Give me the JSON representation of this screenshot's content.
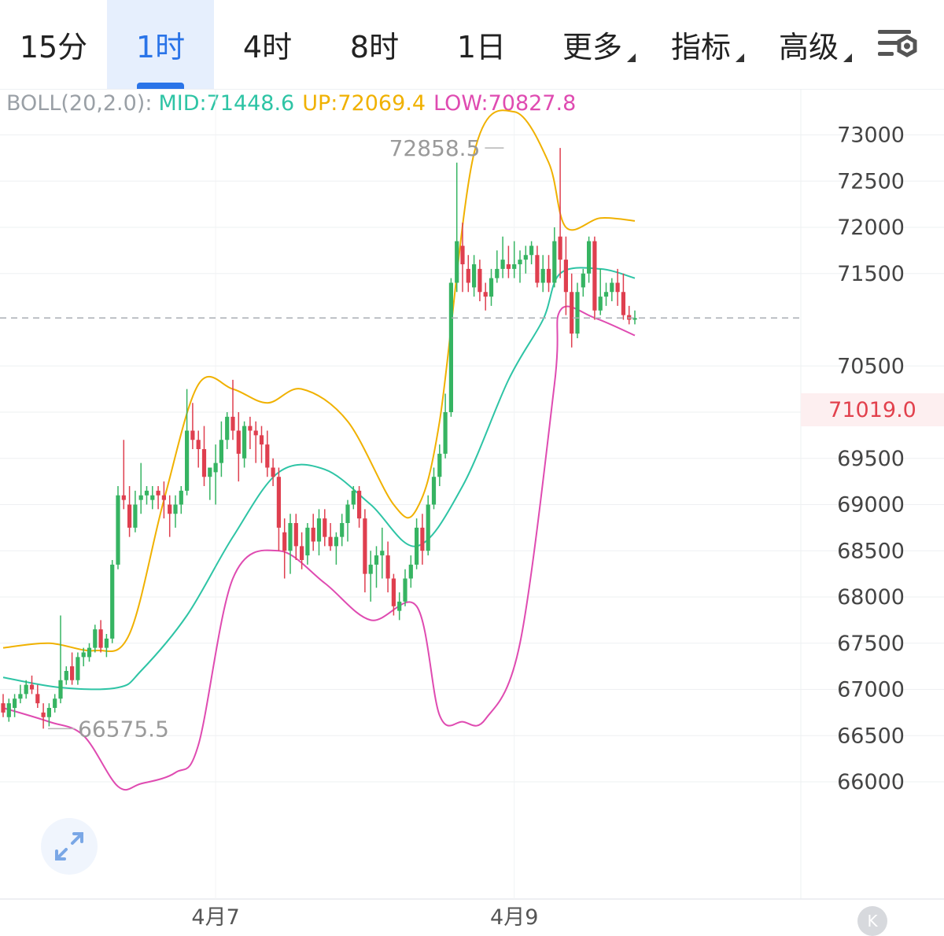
{
  "tabs": [
    {
      "label": "15分",
      "active": false,
      "dropdown": false
    },
    {
      "label": "1时",
      "active": true,
      "dropdown": false
    },
    {
      "label": "4时",
      "active": false,
      "dropdown": false
    },
    {
      "label": "8时",
      "active": false,
      "dropdown": false
    },
    {
      "label": "1日",
      "active": false,
      "dropdown": false
    },
    {
      "label": "更多",
      "active": false,
      "dropdown": true
    },
    {
      "label": "指标",
      "active": false,
      "dropdown": true
    },
    {
      "label": "高级",
      "active": false,
      "dropdown": true
    }
  ],
  "settings_icon": "chart-settings-icon",
  "indicator": {
    "label": "BOLL(20,2.0):",
    "mid": "MID:71448.6",
    "up": "UP:72069.4",
    "low": "LOW:70827.8"
  },
  "current_price": "71019.0",
  "expand_icon": "expand-arrows-icon",
  "home_icon": "scroll-to-latest-icon",
  "home_glyph": "K",
  "colors": {
    "up_candle": "#36b462",
    "down_candle": "#df3f4f",
    "boll_mid": "#2ec4a5",
    "boll_up": "#f0b100",
    "boll_low": "#df4bb1",
    "active_tab": "#2a74e8"
  },
  "chart_data": {
    "type": "candlestick",
    "interval": "1时",
    "y_ticks": [
      73000,
      72500,
      72000,
      71500,
      70500,
      70000,
      69500,
      69000,
      68500,
      68000,
      67500,
      67000,
      66500,
      66000
    ],
    "ylim": [
      65850,
      73700
    ],
    "x_labels": [
      {
        "label": "4月7",
        "index": 37
      },
      {
        "label": "4月9",
        "index": 89
      }
    ],
    "annotations": [
      {
        "text": "72858.5",
        "index": 88,
        "value": 72858.5,
        "kind": "high"
      },
      {
        "text": "66575.5",
        "index": 7,
        "value": 66575.5,
        "kind": "low"
      }
    ],
    "last_price": 71019.0,
    "ohlc": [
      [
        66850,
        66950,
        66700,
        66750
      ],
      [
        66700,
        66900,
        66650,
        66850
      ],
      [
        66800,
        66950,
        66700,
        66900
      ],
      [
        66900,
        67050,
        66850,
        66950
      ],
      [
        66950,
        67100,
        66900,
        67050
      ],
      [
        67050,
        67150,
        66950,
        67000
      ],
      [
        66950,
        67050,
        66800,
        66850
      ],
      [
        66750,
        66850,
        66575.5,
        66700
      ],
      [
        66700,
        66850,
        66600,
        66800
      ],
      [
        66800,
        66950,
        66750,
        66900
      ],
      [
        66900,
        67800,
        66850,
        67100
      ],
      [
        67100,
        67250,
        67050,
        67200
      ],
      [
        67250,
        67400,
        67050,
        67100
      ],
      [
        67100,
        67400,
        67050,
        67350
      ],
      [
        67350,
        67450,
        67250,
        67400
      ],
      [
        67350,
        67500,
        67300,
        67450
      ],
      [
        67450,
        67700,
        67400,
        67650
      ],
      [
        67650,
        67750,
        67400,
        67450
      ],
      [
        67450,
        67600,
        67350,
        67550
      ],
      [
        67550,
        68400,
        67500,
        68350
      ],
      [
        68350,
        69200,
        68300,
        69100
      ],
      [
        69100,
        69700,
        68950,
        69050
      ],
      [
        69000,
        69200,
        68650,
        68750
      ],
      [
        68750,
        69150,
        68700,
        69000
      ],
      [
        69050,
        69450,
        68900,
        69100
      ],
      [
        69100,
        69200,
        69000,
        69150
      ],
      [
        69050,
        69200,
        68950,
        69100
      ],
      [
        69150,
        69200,
        68950,
        69100
      ],
      [
        69100,
        69250,
        68850,
        69050
      ],
      [
        69000,
        69100,
        68650,
        68900
      ],
      [
        68900,
        69100,
        68750,
        69000
      ],
      [
        69000,
        69200,
        68900,
        69150
      ],
      [
        69150,
        70250,
        69100,
        69800
      ],
      [
        69800,
        70100,
        69600,
        69700
      ],
      [
        69700,
        69800,
        69400,
        69600
      ],
      [
        69600,
        69850,
        69200,
        69300
      ],
      [
        69300,
        69400,
        69050,
        69400
      ],
      [
        69350,
        69650,
        69000,
        69450
      ],
      [
        69450,
        69900,
        69300,
        69700
      ],
      [
        69700,
        70000,
        69600,
        69950
      ],
      [
        69950,
        70350,
        69700,
        69800
      ],
      [
        69800,
        70000,
        69250,
        69550
      ],
      [
        69500,
        69900,
        69400,
        69850
      ],
      [
        69850,
        69950,
        69600,
        69800
      ],
      [
        69800,
        69900,
        69450,
        69750
      ],
      [
        69750,
        69850,
        69450,
        69650
      ],
      [
        69650,
        69800,
        69300,
        69400
      ],
      [
        69400,
        69500,
        69200,
        69300
      ],
      [
        69300,
        69400,
        68500,
        68750
      ],
      [
        68700,
        68850,
        68200,
        68500
      ],
      [
        68500,
        68900,
        68250,
        68800
      ],
      [
        68800,
        68900,
        68400,
        68550
      ],
      [
        68550,
        68700,
        68300,
        68400
      ],
      [
        68450,
        68800,
        68350,
        68750
      ],
      [
        68750,
        68900,
        68500,
        68600
      ],
      [
        68600,
        68950,
        68450,
        68850
      ],
      [
        68850,
        68950,
        68550,
        68650
      ],
      [
        68650,
        68800,
        68500,
        68550
      ],
      [
        68550,
        68700,
        68350,
        68650
      ],
      [
        68650,
        68900,
        68550,
        68800
      ],
      [
        68800,
        69050,
        68600,
        69000
      ],
      [
        69000,
        69200,
        68950,
        69150
      ],
      [
        69150,
        69200,
        68750,
        68850
      ],
      [
        68850,
        68950,
        68050,
        68250
      ],
      [
        68250,
        68500,
        67950,
        68350
      ],
      [
        68350,
        68550,
        68100,
        68450
      ],
      [
        68450,
        68750,
        68200,
        68500
      ],
      [
        68450,
        68600,
        68050,
        68200
      ],
      [
        68200,
        68250,
        67800,
        67900
      ],
      [
        67850,
        68050,
        67750,
        67950
      ],
      [
        67950,
        68300,
        67900,
        68200
      ],
      [
        68200,
        68450,
        68100,
        68350
      ],
      [
        68350,
        68850,
        68300,
        68750
      ],
      [
        68750,
        68900,
        68350,
        68500
      ],
      [
        68500,
        69100,
        68450,
        69000
      ],
      [
        69000,
        69400,
        68950,
        69300
      ],
      [
        69300,
        69650,
        69200,
        69550
      ],
      [
        69550,
        70200,
        69500,
        70000
      ],
      [
        70000,
        71450,
        69950,
        71400
      ],
      [
        71400,
        72700,
        71300,
        71850
      ],
      [
        71800,
        72050,
        71300,
        71600
      ],
      [
        71550,
        71700,
        71300,
        71400
      ],
      [
        71350,
        71700,
        71250,
        71600
      ],
      [
        71550,
        71650,
        71200,
        71300
      ],
      [
        71300,
        71400,
        71100,
        71250
      ],
      [
        71250,
        71550,
        71150,
        71450
      ],
      [
        71450,
        71750,
        71400,
        71550
      ],
      [
        71550,
        71900,
        71450,
        71650
      ],
      [
        71600,
        71800,
        71450,
        71550
      ],
      [
        71550,
        71850,
        71450,
        71600
      ],
      [
        71600,
        71750,
        71400,
        71650
      ],
      [
        71650,
        71800,
        71500,
        71700
      ],
      [
        71700,
        71850,
        71600,
        71800
      ],
      [
        71700,
        71800,
        71350,
        71400
      ],
      [
        71400,
        71700,
        71300,
        71550
      ],
      [
        71550,
        71700,
        71300,
        71400
      ],
      [
        71400,
        72000,
        71350,
        71850
      ],
      [
        71900,
        72858.5,
        71450,
        71650
      ],
      [
        71650,
        71900,
        71050,
        71300
      ],
      [
        71300,
        71500,
        70700,
        70850
      ],
      [
        70850,
        71400,
        70800,
        71300
      ],
      [
        71350,
        71550,
        71250,
        71500
      ],
      [
        71500,
        71900,
        71400,
        71850
      ],
      [
        71850,
        71900,
        71000,
        71100
      ],
      [
        71100,
        71550,
        71050,
        71250
      ],
      [
        71250,
        71400,
        71150,
        71300
      ],
      [
        71300,
        71450,
        71200,
        71400
      ],
      [
        71400,
        71550,
        71150,
        71300
      ],
      [
        71300,
        71500,
        71000,
        71050
      ],
      [
        71050,
        71150,
        70950,
        71000
      ],
      [
        71000,
        71100,
        70950,
        71019
      ]
    ],
    "boll": {
      "period": 20,
      "k": 2.0,
      "mid_last": 71448.6,
      "up_last": 72069.4,
      "low_last": 70827.8,
      "mid": [
        [
          0,
          67130
        ],
        [
          10,
          67020
        ],
        [
          20,
          67020
        ],
        [
          24,
          67200
        ],
        [
          32,
          67800
        ],
        [
          40,
          68650
        ],
        [
          48,
          69350
        ],
        [
          56,
          69380
        ],
        [
          64,
          69000
        ],
        [
          72,
          68550
        ],
        [
          80,
          69200
        ],
        [
          88,
          70350
        ],
        [
          94,
          71000
        ],
        [
          97,
          71500
        ],
        [
          104,
          71550
        ],
        [
          110,
          71450
        ]
      ],
      "up": [
        [
          0,
          67450
        ],
        [
          8,
          67500
        ],
        [
          16,
          67420
        ],
        [
          22,
          67600
        ],
        [
          28,
          69050
        ],
        [
          34,
          70300
        ],
        [
          40,
          70250
        ],
        [
          46,
          70100
        ],
        [
          52,
          70250
        ],
        [
          60,
          69900
        ],
        [
          68,
          69000
        ],
        [
          72,
          68950
        ],
        [
          76,
          69900
        ],
        [
          82,
          72800
        ],
        [
          89,
          73250
        ],
        [
          95,
          72700
        ],
        [
          98,
          72000
        ],
        [
          104,
          72100
        ],
        [
          110,
          72069
        ]
      ],
      "low": [
        [
          0,
          66800
        ],
        [
          8,
          66650
        ],
        [
          14,
          66500
        ],
        [
          20,
          65950
        ],
        [
          24,
          65980
        ],
        [
          30,
          66100
        ],
        [
          34,
          66400
        ],
        [
          40,
          68200
        ],
        [
          48,
          68500
        ],
        [
          56,
          68150
        ],
        [
          64,
          67750
        ],
        [
          72,
          67900
        ],
        [
          76,
          66720
        ],
        [
          80,
          66650
        ],
        [
          84,
          66680
        ],
        [
          90,
          67500
        ],
        [
          96,
          70300
        ],
        [
          97,
          71100
        ],
        [
          103,
          71020
        ],
        [
          110,
          70830
        ]
      ]
    }
  }
}
